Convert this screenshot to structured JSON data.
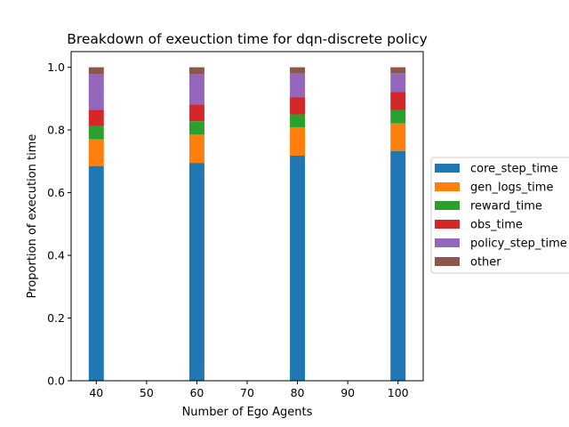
{
  "chart_data": {
    "type": "bar",
    "stacked": true,
    "title": "Breakdown of exeuction time for dqn-discrete policy",
    "xlabel": "Number of Ego Agents",
    "ylabel": "Proportion of execution time",
    "x": [
      40,
      60,
      80,
      100
    ],
    "xlim": [
      35,
      105
    ],
    "ylim": [
      0,
      1.05
    ],
    "xticks": [
      40,
      50,
      60,
      70,
      80,
      90,
      100
    ],
    "yticks": [
      0.0,
      0.2,
      0.4,
      0.6,
      0.8,
      1.0
    ],
    "bar_width": 3,
    "grid": false,
    "legend_position": "outside-right",
    "series": [
      {
        "name": "core_step_time",
        "color": "#1f77b4",
        "values": [
          0.685,
          0.695,
          0.718,
          0.733
        ]
      },
      {
        "name": "gen_logs_time",
        "color": "#ff7f0e",
        "values": [
          0.085,
          0.09,
          0.09,
          0.088
        ]
      },
      {
        "name": "reward_time",
        "color": "#2ca02c",
        "values": [
          0.042,
          0.043,
          0.042,
          0.042
        ]
      },
      {
        "name": "obs_time",
        "color": "#d62728",
        "values": [
          0.053,
          0.054,
          0.055,
          0.058
        ]
      },
      {
        "name": "policy_step_time",
        "color": "#9467bd",
        "values": [
          0.113,
          0.096,
          0.075,
          0.06
        ]
      },
      {
        "name": "other",
        "color": "#8c564b",
        "values": [
          0.022,
          0.022,
          0.02,
          0.019
        ]
      }
    ]
  }
}
